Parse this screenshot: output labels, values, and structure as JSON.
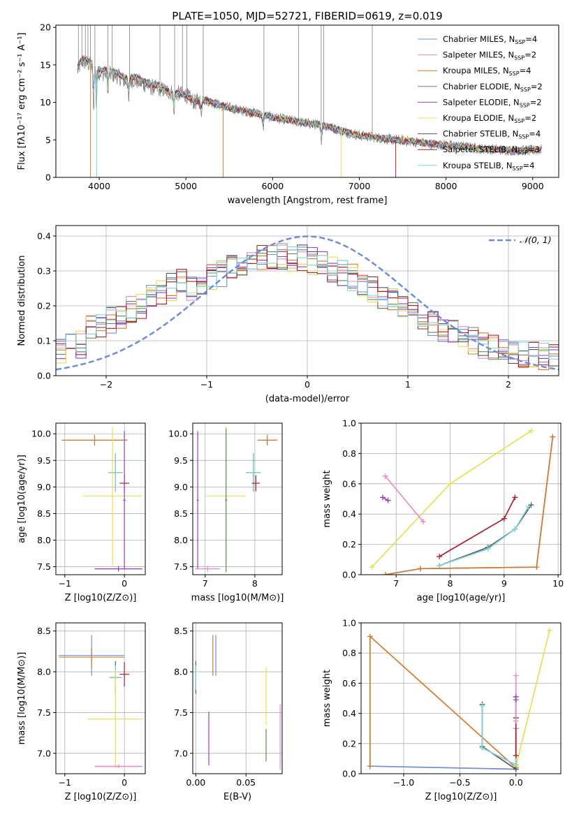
{
  "figure_title": "PLATE=1050, MJD=52721, FIBERID=0619, z=0.019",
  "colors": {
    "Chabrier MILES": "#6e8fdc",
    "Salpeter MILES": "#e88bc4",
    "Kroupa MILES": "#d87a2c",
    "Chabrier ELODIE": "#5a8f5a",
    "Salpeter ELODIE": "#9a3fc0",
    "Kroupa ELODIE": "#e8e050",
    "Chabrier STELIB": "#555566",
    "Salpeter STELIB": "#b01c2a",
    "Kroupa STELIB": "#7fd6d6",
    "Gaussian": "#6a8fd8",
    "data": "#808080"
  },
  "chart_data": [
    {
      "id": "spectrum",
      "type": "line",
      "title": "PLATE=1050, MJD=52721, FIBERID=0619, z=0.019",
      "xlabel": "wavelength [Angstrom, rest frame]",
      "ylabel": "Flux [fλ10⁻¹⁷ erg cm⁻² s⁻¹ A⁻¹]",
      "xlim": [
        3500,
        9300
      ],
      "ylim": [
        0,
        20.3
      ],
      "xticks": [
        4000,
        5000,
        6000,
        7000,
        8000,
        9000
      ],
      "yticks": [
        0,
        5,
        10,
        15,
        20
      ],
      "legend_position": "top-right",
      "legend": [
        {
          "name": "Chabrier MILES",
          "nssp": "4"
        },
        {
          "name": "Salpeter MILES",
          "nssp": "2"
        },
        {
          "name": "Kroupa MILES",
          "nssp": "4"
        },
        {
          "name": "Chabrier ELODIE",
          "nssp": "2"
        },
        {
          "name": "Salpeter ELODIE",
          "nssp": "2"
        },
        {
          "name": "Kroupa ELODIE",
          "nssp": "2"
        },
        {
          "name": "Chabrier STELIB",
          "nssp": "4"
        },
        {
          "name": "Salpeter STELIB",
          "nssp": "3"
        },
        {
          "name": "Kroupa STELIB",
          "nssp": "4"
        }
      ],
      "continuum": [
        [
          3750,
          14.2
        ],
        [
          3800,
          15.5
        ],
        [
          3900,
          15.0
        ],
        [
          4000,
          14.0
        ],
        [
          4100,
          13.8
        ],
        [
          4200,
          13.6
        ],
        [
          4300,
          12.8
        ],
        [
          4400,
          13.0
        ],
        [
          4500,
          12.5
        ],
        [
          4600,
          12.0
        ],
        [
          4700,
          11.8
        ],
        [
          4800,
          11.4
        ],
        [
          4900,
          11.2
        ],
        [
          5000,
          11.0
        ],
        [
          5100,
          10.0
        ],
        [
          5200,
          10.4
        ],
        [
          5400,
          9.6
        ],
        [
          5600,
          9.0
        ],
        [
          5800,
          8.6
        ],
        [
          6000,
          8.0
        ],
        [
          6200,
          7.6
        ],
        [
          6400,
          7.2
        ],
        [
          6600,
          6.9
        ],
        [
          6800,
          6.2
        ],
        [
          7000,
          5.6
        ],
        [
          7200,
          5.3
        ],
        [
          7400,
          5.0
        ],
        [
          7600,
          4.8
        ],
        [
          7800,
          4.5
        ],
        [
          8000,
          4.3
        ],
        [
          8200,
          4.1
        ],
        [
          8400,
          3.8
        ],
        [
          8600,
          3.7
        ],
        [
          8800,
          3.6
        ],
        [
          9000,
          3.6
        ],
        [
          9100,
          3.7
        ]
      ]
    },
    {
      "id": "residuals",
      "type": "line",
      "xlabel": "(data-model)/error",
      "ylabel": "Normed distribution",
      "xlim": [
        -2.5,
        2.5
      ],
      "ylim": [
        0,
        0.43
      ],
      "xticks": [
        -2,
        -1,
        0,
        1,
        2
      ],
      "yticks": [
        0.0,
        0.1,
        0.2,
        0.3,
        0.4
      ],
      "grid": true,
      "legend_position": "top-right",
      "gaussian_label": "𝒩(0, 1)"
    },
    {
      "id": "z_age",
      "type": "scatter",
      "xlabel": "Z [log10(Z/Z⊙)]",
      "ylabel": "age  [log10(age/yr)]",
      "xlim": [
        -1.15,
        0.35
      ],
      "ylim": [
        7.35,
        10.2
      ],
      "xticks": [
        -1,
        0
      ],
      "yticks": [
        7.5,
        8.0,
        8.5,
        9.0,
        9.5,
        10.0
      ],
      "grid": true,
      "points": [
        {
          "s": "Chabrier MILES",
          "x": -0.5,
          "xe": 0.55,
          "y": 9.88,
          "ye": 0.1
        },
        {
          "s": "Kroupa MILES",
          "x": -0.5,
          "xe": 0.55,
          "y": 9.88,
          "ye": 0.1
        },
        {
          "s": "Chabrier STELIB",
          "x": -0.15,
          "xe": 0.12,
          "y": 9.27,
          "ye": 0.36
        },
        {
          "s": "Kroupa STELIB",
          "x": -0.15,
          "xe": 0.12,
          "y": 9.27,
          "ye": 0.36
        },
        {
          "s": "Salpeter STELIB",
          "x": 0.0,
          "xe": 0.08,
          "y": 9.07,
          "ye": 0.15
        },
        {
          "s": "Kroupa ELODIE",
          "x": -0.2,
          "xe": 0.5,
          "y": 8.83,
          "ye": 1.3
        },
        {
          "s": "Salpeter ELODIE",
          "x": 0.0,
          "xe": 0.02,
          "y": 8.75,
          "ye": 1.3
        },
        {
          "s": "Salpeter MILES",
          "x": -0.1,
          "xe": 0.4,
          "y": 7.46,
          "ye": 0.05
        },
        {
          "s": "Salpeter ELODIE",
          "x": -0.1,
          "xe": 0.4,
          "y": 7.46,
          "ye": 0.05
        }
      ]
    },
    {
      "id": "mass_age",
      "type": "scatter",
      "xlabel": "mass [log10(M/M⊙)]",
      "ylabel": "",
      "xlim": [
        6.75,
        8.55
      ],
      "ylim": [
        7.35,
        10.2
      ],
      "xticks": [
        7,
        8
      ],
      "yticks": [
        7.5,
        8.0,
        8.5,
        9.0,
        9.5,
        10.0
      ],
      "grid": true,
      "points": [
        {
          "s": "Chabrier MILES",
          "x": 8.25,
          "xe": 0.2,
          "y": 9.88,
          "ye": 0.1
        },
        {
          "s": "Kroupa MILES",
          "x": 8.25,
          "xe": 0.2,
          "y": 9.88,
          "ye": 0.1
        },
        {
          "s": "Chabrier STELIB",
          "x": 7.97,
          "xe": 0.15,
          "y": 9.27,
          "ye": 0.36
        },
        {
          "s": "Kroupa STELIB",
          "x": 7.97,
          "xe": 0.15,
          "y": 9.27,
          "ye": 0.36
        },
        {
          "s": "Salpeter STELIB",
          "x": 8.02,
          "xe": 0.08,
          "y": 9.07,
          "ye": 0.15
        },
        {
          "s": "Kroupa ELODIE",
          "x": 7.42,
          "xe": 0.4,
          "y": 8.83,
          "ye": 1.3
        },
        {
          "s": "Chabrier ELODIE",
          "x": 7.42,
          "xe": 0.02,
          "y": 8.75,
          "ye": 1.35
        },
        {
          "s": "Salpeter ELODIE",
          "x": 6.85,
          "xe": 0.02,
          "y": 8.75,
          "ye": 1.3
        },
        {
          "s": "Salpeter MILES",
          "x": 7.05,
          "xe": 0.25,
          "y": 7.46,
          "ye": 0.05
        }
      ]
    },
    {
      "id": "age_weight",
      "type": "line",
      "xlabel": "age  [log10(age/yr)]",
      "ylabel": "mass weight",
      "xlim": [
        6.35,
        10.05
      ],
      "ylim": [
        0,
        1.0
      ],
      "xticks": [
        7,
        8,
        9,
        10
      ],
      "yticks": [
        0.0,
        0.2,
        0.4,
        0.6,
        0.8,
        1.0
      ],
      "grid": true,
      "series": [
        {
          "s": "Kroupa ELODIE",
          "x": [
            6.55,
            8.0,
            9.5
          ],
          "y": [
            0.05,
            0.6,
            0.95
          ]
        },
        {
          "s": "Salpeter MILES",
          "x": [
            6.8,
            7.5
          ],
          "y": [
            0.65,
            0.35
          ]
        },
        {
          "s": "Salpeter ELODIE",
          "x": [
            6.75,
            6.85
          ],
          "y": [
            0.51,
            0.49
          ]
        },
        {
          "s": "Salpeter STELIB",
          "x": [
            7.8,
            9.0,
            9.2
          ],
          "y": [
            0.12,
            0.37,
            0.51
          ]
        },
        {
          "s": "Chabrier STELIB",
          "x": [
            7.8,
            8.7,
            9.2,
            9.5
          ],
          "y": [
            0.06,
            0.18,
            0.3,
            0.46
          ]
        },
        {
          "s": "Kroupa STELIB",
          "x": [
            7.8,
            8.7,
            9.2,
            9.45
          ],
          "y": [
            0.06,
            0.17,
            0.3,
            0.45
          ]
        },
        {
          "s": "Chabrier MILES",
          "x": [
            6.8,
            7.45,
            9.6,
            9.9
          ],
          "y": [
            0.0,
            0.04,
            0.05,
            0.91
          ]
        },
        {
          "s": "Kroupa MILES",
          "x": [
            6.8,
            7.45,
            9.6,
            9.9
          ],
          "y": [
            0.0,
            0.04,
            0.05,
            0.91
          ]
        }
      ]
    },
    {
      "id": "z_mass",
      "type": "scatter",
      "xlabel": "Z [log10(Z/Z⊙)]",
      "ylabel": "mass [log10(M/M⊙)]",
      "xlim": [
        -1.15,
        0.35
      ],
      "ylim": [
        6.75,
        8.6
      ],
      "xticks": [
        -1,
        0
      ],
      "yticks": [
        7.0,
        7.5,
        8.0,
        8.5
      ],
      "grid": true,
      "points": [
        {
          "s": "Chabrier MILES",
          "x": -0.55,
          "xe": 0.55,
          "y": 8.2,
          "ye": 0.25
        },
        {
          "s": "Kroupa MILES",
          "x": -0.55,
          "xe": 0.55,
          "y": 8.18,
          "ye": 0.12
        },
        {
          "s": "Chabrier STELIB",
          "x": -0.15,
          "xe": 0.1,
          "y": 7.93,
          "ye": 0.2
        },
        {
          "s": "Kroupa STELIB",
          "x": -0.15,
          "xe": 0.1,
          "y": 7.93,
          "ye": 0.15
        },
        {
          "s": "Salpeter STELIB",
          "x": 0.0,
          "xe": 0.08,
          "y": 7.97,
          "ye": 0.15
        },
        {
          "s": "Kroupa ELODIE",
          "x": -0.15,
          "xe": 0.47,
          "y": 7.42,
          "ye": 0.6
        },
        {
          "s": "Salpeter ELODIE",
          "x": -0.1,
          "xe": 0.4,
          "y": 6.84,
          "ye": 0.02
        },
        {
          "s": "Salpeter MILES",
          "x": -0.1,
          "xe": 0.4,
          "y": 6.84,
          "ye": 0.02
        }
      ]
    },
    {
      "id": "ebv_mass",
      "type": "scatter",
      "xlabel": "E(B-V)",
      "ylabel": "",
      "xlim": [
        -0.003,
        0.086
      ],
      "ylim": [
        6.75,
        8.6
      ],
      "xticks": [
        0.0,
        0.05
      ],
      "yticks": [
        7.0,
        7.5,
        8.0,
        8.5
      ],
      "grid": true,
      "points": [
        {
          "s": "Chabrier MILES",
          "x": 0.02,
          "y": 8.2,
          "ye": 0.25
        },
        {
          "s": "Kroupa MILES",
          "x": 0.017,
          "y": 8.2,
          "ye": 0.25
        },
        {
          "s": "Chabrier STELIB",
          "x": 0.0,
          "y": 7.93,
          "ye": 0.2
        },
        {
          "s": "Kroupa STELIB",
          "x": 0.0,
          "y": 7.93,
          "ye": 0.15
        },
        {
          "s": "Salpeter ELODIE",
          "x": 0.013,
          "y": 7.18,
          "ye": 0.33
        },
        {
          "s": "Kroupa ELODIE",
          "x": 0.07,
          "y": 7.7,
          "ye": 0.35
        },
        {
          "s": "Chabrier ELODIE",
          "x": 0.07,
          "y": 7.1,
          "ye": 0.2
        },
        {
          "s": "Salpeter MILES",
          "x": 0.084,
          "y": 7.2,
          "ye": 0.4
        }
      ]
    },
    {
      "id": "z_weight",
      "type": "line",
      "xlabel": "Z [log10(Z/Z⊙)]",
      "ylabel": "mass weight",
      "xlim": [
        -1.38,
        0.4
      ],
      "ylim": [
        0,
        1.0
      ],
      "xticks": [
        -1.0,
        -0.5,
        0.0
      ],
      "yticks": [
        0.0,
        0.2,
        0.4,
        0.6,
        0.8,
        1.0
      ],
      "grid": true,
      "series": [
        {
          "s": "Chabrier MILES",
          "x": [
            -1.3,
            0.0
          ],
          "y": [
            0.05,
            0.03
          ]
        },
        {
          "s": "Kroupa MILES",
          "x": [
            -1.3,
            -1.3,
            0.0
          ],
          "y": [
            0.05,
            0.91,
            0.04
          ]
        },
        {
          "s": "Kroupa ELODIE",
          "x": [
            0.0,
            0.3
          ],
          "y": [
            0.05,
            0.95
          ]
        },
        {
          "s": "Chabrier STELIB",
          "x": [
            -0.3,
            -0.3,
            0.0,
            0.0
          ],
          "y": [
            0.46,
            0.18,
            0.03,
            0.3
          ]
        },
        {
          "s": "Kroupa STELIB",
          "x": [
            -0.3,
            -0.3,
            0.0,
            0.0
          ],
          "y": [
            0.45,
            0.17,
            0.06,
            0.3
          ]
        },
        {
          "s": "Salpeter STELIB",
          "x": [
            0.0,
            0.0,
            0.0
          ],
          "y": [
            0.51,
            0.37,
            0.12
          ]
        },
        {
          "s": "Salpeter MILES",
          "x": [
            0.0,
            0.0
          ],
          "y": [
            0.65,
            0.35
          ]
        },
        {
          "s": "Salpeter ELODIE",
          "x": [
            0.0,
            0.0
          ],
          "y": [
            0.51,
            0.49
          ]
        }
      ]
    }
  ]
}
